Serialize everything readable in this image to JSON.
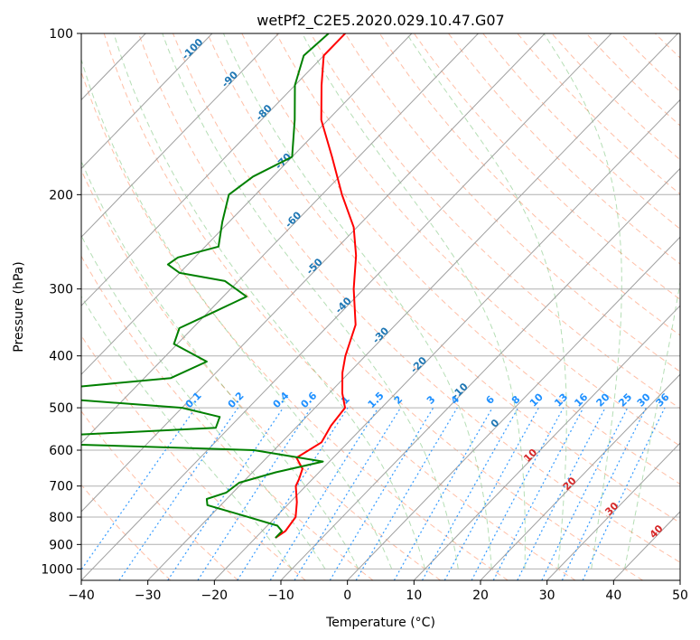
{
  "chart_data": {
    "type": "line",
    "subtype": "skew-T log-P diagram",
    "title": "wetPf2_C2E5.2020.029.10.47.G07",
    "xlabel": "Temperature (°C)",
    "ylabel": "Pressure (hPa)",
    "xlim": [
      -40,
      50
    ],
    "ylim": [
      1050,
      100
    ],
    "yscale": "log",
    "x_ticks": [
      "−40",
      "−30",
      "−20",
      "−10",
      "0",
      "10",
      "20",
      "30",
      "40",
      "50"
    ],
    "y_ticks": [
      "100",
      "200",
      "300",
      "400",
      "500",
      "600",
      "700",
      "800",
      "900",
      "1000"
    ],
    "grid": true,
    "colors": {
      "temperature": "#ff0000",
      "dewpoint": "#008000",
      "dry_adiabat": "#ff7f50",
      "moist_adiabat": "#2ca02c",
      "mixing_ratio": "#1e90ff",
      "isotherm_label_blue": "#1f77b4",
      "isotherm_label_red": "#d62728"
    },
    "series": [
      {
        "role": "temperature",
        "p": [
          100,
          110,
          125,
          145,
          170,
          200,
          230,
          260,
          300,
          350,
          400,
          430,
          470,
          500,
          540,
          580,
          620,
          650,
          680,
          700,
          750,
          800,
          850,
          875
        ],
        "t": [
          -80,
          -80,
          -76,
          -71,
          -64,
          -57,
          -50.5,
          -46,
          -41.5,
          -36,
          -33,
          -31,
          -28,
          -25.5,
          -25,
          -24,
          -25.5,
          -23,
          -22,
          -21.5,
          -19,
          -17,
          -16.5,
          -17
        ]
      },
      {
        "role": "dewpoint",
        "p": [
          100,
          110,
          125,
          145,
          170,
          185,
          200,
          225,
          250,
          262,
          270,
          280,
          290,
          310,
          330,
          355,
          380,
          410,
          440,
          460,
          480,
          500,
          520,
          545,
          570,
          580,
          600,
          630,
          660,
          690,
          720,
          740,
          760,
          790,
          830,
          850,
          875
        ],
        "t": [
          -82.5,
          -83,
          -80,
          -75,
          -70,
          -73,
          -74,
          -71,
          -68,
          -72.5,
          -73,
          -70,
          -62,
          -56.5,
          -59,
          -62,
          -60.5,
          -53,
          -56,
          -71,
          -70.5,
          -50,
          -43,
          -42,
          -72,
          -71.5,
          -33,
          -21,
          -26.5,
          -30.5,
          -31,
          -33,
          -32,
          -26,
          -18.5,
          -17,
          -17
        ]
      }
    ],
    "isotherm_labels": [
      "-100",
      "-90",
      "-80",
      "-70",
      "-60",
      "-50",
      "-40",
      "-30",
      "-20",
      "-10",
      "0",
      "10",
      "20",
      "30",
      "40"
    ],
    "mixing_ratio_labels": [
      "0.1",
      "0.2",
      "0.4",
      "0.6",
      "1",
      "1.5",
      "2",
      "3",
      "4",
      "6",
      "8",
      "10",
      "13",
      "16",
      "20",
      "25",
      "30",
      "36"
    ]
  }
}
